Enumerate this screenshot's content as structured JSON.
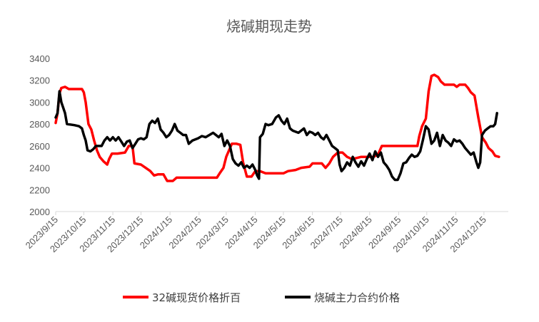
{
  "chart_data": {
    "type": "line",
    "title": "烧碱期现走势",
    "xlabel": "",
    "ylabel": "",
    "ylim": [
      2000,
      3400
    ],
    "yticks": [
      2000,
      2200,
      2400,
      2600,
      2800,
      3000,
      3200,
      3400
    ],
    "grid": false,
    "legend_position": "bottom",
    "x_tick_labels": [
      "2023/9/15",
      "2023/10/15",
      "2023/11/15",
      "2023/12/15",
      "2024/1/15",
      "2024/2/15",
      "2024/3/15",
      "2024/4/15",
      "2024/5/15",
      "2024/6/15",
      "2024/7/15",
      "2024/8/15",
      "2024/9/15",
      "2024/10/15",
      "2024/11/15",
      "2024/12/15"
    ],
    "series": [
      {
        "name": "32碱现货价格折百",
        "color": "#ff0000",
        "points": [
          [
            "2023-09-15",
            2810
          ],
          [
            "2023-09-17",
            2900
          ],
          [
            "2023-09-19",
            3080
          ],
          [
            "2023-09-21",
            3130
          ],
          [
            "2023-09-25",
            3140
          ],
          [
            "2023-09-29",
            3120
          ],
          [
            "2023-10-05",
            3120
          ],
          [
            "2023-10-10",
            3120
          ],
          [
            "2023-10-13",
            3120
          ],
          [
            "2023-10-15",
            3090
          ],
          [
            "2023-10-17",
            3000
          ],
          [
            "2023-10-20",
            2800
          ],
          [
            "2023-10-23",
            2750
          ],
          [
            "2023-10-26",
            2650
          ],
          [
            "2023-10-29",
            2560
          ],
          [
            "2023-11-01",
            2500
          ],
          [
            "2023-11-05",
            2460
          ],
          [
            "2023-11-09",
            2430
          ],
          [
            "2023-11-11",
            2480
          ],
          [
            "2023-11-14",
            2530
          ],
          [
            "2023-11-20",
            2530
          ],
          [
            "2023-11-28",
            2540
          ],
          [
            "2023-12-02",
            2600
          ],
          [
            "2023-12-06",
            2600
          ],
          [
            "2023-12-08",
            2440
          ],
          [
            "2023-12-15",
            2430
          ],
          [
            "2023-12-20",
            2400
          ],
          [
            "2023-12-25",
            2370
          ],
          [
            "2023-12-29",
            2330
          ],
          [
            "2024-01-02",
            2340
          ],
          [
            "2024-01-08",
            2340
          ],
          [
            "2024-01-12",
            2280
          ],
          [
            "2024-01-18",
            2280
          ],
          [
            "2024-01-22",
            2310
          ],
          [
            "2024-02-05",
            2310
          ],
          [
            "2024-02-20",
            2310
          ],
          [
            "2024-03-05",
            2310
          ],
          [
            "2024-03-08",
            2350
          ],
          [
            "2024-03-12",
            2400
          ],
          [
            "2024-03-15",
            2500
          ],
          [
            "2024-03-18",
            2560
          ],
          [
            "2024-03-21",
            2620
          ],
          [
            "2024-03-26",
            2620
          ],
          [
            "2024-03-30",
            2610
          ],
          [
            "2024-04-02",
            2450
          ],
          [
            "2024-04-06",
            2320
          ],
          [
            "2024-04-11",
            2320
          ],
          [
            "2024-04-15",
            2370
          ],
          [
            "2024-04-20",
            2370
          ],
          [
            "2024-04-26",
            2350
          ],
          [
            "2024-05-05",
            2350
          ],
          [
            "2024-05-15",
            2350
          ],
          [
            "2024-05-20",
            2370
          ],
          [
            "2024-05-28",
            2380
          ],
          [
            "2024-06-03",
            2400
          ],
          [
            "2024-06-12",
            2410
          ],
          [
            "2024-06-15",
            2440
          ],
          [
            "2024-06-25",
            2440
          ],
          [
            "2024-06-29",
            2400
          ],
          [
            "2024-07-03",
            2440
          ],
          [
            "2024-07-07",
            2500
          ],
          [
            "2024-07-12",
            2540
          ],
          [
            "2024-07-17",
            2540
          ],
          [
            "2024-07-22",
            2500
          ],
          [
            "2024-07-27",
            2480
          ],
          [
            "2024-08-01",
            2490
          ],
          [
            "2024-08-06",
            2500
          ],
          [
            "2024-08-12",
            2500
          ],
          [
            "2024-08-19",
            2500
          ],
          [
            "2024-08-24",
            2520
          ],
          [
            "2024-08-28",
            2600
          ],
          [
            "2024-09-05",
            2600
          ],
          [
            "2024-09-15",
            2600
          ],
          [
            "2024-09-25",
            2600
          ],
          [
            "2024-10-05",
            2600
          ],
          [
            "2024-10-07",
            2690
          ],
          [
            "2024-10-10",
            2780
          ],
          [
            "2024-10-14",
            2850
          ],
          [
            "2024-10-17",
            3100
          ],
          [
            "2024-10-20",
            3240
          ],
          [
            "2024-10-23",
            3250
          ],
          [
            "2024-10-27",
            3230
          ],
          [
            "2024-10-30",
            3190
          ],
          [
            "2024-11-03",
            3160
          ],
          [
            "2024-11-08",
            3160
          ],
          [
            "2024-11-13",
            3160
          ],
          [
            "2024-11-16",
            3140
          ],
          [
            "2024-11-19",
            3160
          ],
          [
            "2024-11-25",
            3160
          ],
          [
            "2024-11-28",
            3130
          ],
          [
            "2024-12-01",
            3090
          ],
          [
            "2024-12-05",
            3060
          ],
          [
            "2024-12-09",
            2860
          ],
          [
            "2024-12-13",
            2680
          ],
          [
            "2024-12-17",
            2630
          ],
          [
            "2024-12-20",
            2580
          ],
          [
            "2024-12-24",
            2550
          ],
          [
            "2024-12-27",
            2510
          ],
          [
            "2024-12-31",
            2500
          ]
        ]
      },
      {
        "name": "烧碱主力合约价格",
        "color": "#000000",
        "points": [
          [
            "2023-09-15",
            2860
          ],
          [
            "2023-09-17",
            2900
          ],
          [
            "2023-09-19",
            3100
          ],
          [
            "2023-09-21",
            3000
          ],
          [
            "2023-09-23",
            2950
          ],
          [
            "2023-09-25",
            2900
          ],
          [
            "2023-09-27",
            2800
          ],
          [
            "2023-10-05",
            2790
          ],
          [
            "2023-10-10",
            2780
          ],
          [
            "2023-10-13",
            2760
          ],
          [
            "2023-10-15",
            2700
          ],
          [
            "2023-10-17",
            2650
          ],
          [
            "2023-10-19",
            2560
          ],
          [
            "2023-10-22",
            2550
          ],
          [
            "2023-10-25",
            2570
          ],
          [
            "2023-10-28",
            2600
          ],
          [
            "2023-10-31",
            2600
          ],
          [
            "2023-11-03",
            2600
          ],
          [
            "2023-11-06",
            2650
          ],
          [
            "2023-11-09",
            2680
          ],
          [
            "2023-11-12",
            2650
          ],
          [
            "2023-11-15",
            2680
          ],
          [
            "2023-11-18",
            2650
          ],
          [
            "2023-11-21",
            2680
          ],
          [
            "2023-11-24",
            2640
          ],
          [
            "2023-11-27",
            2600
          ],
          [
            "2023-11-30",
            2640
          ],
          [
            "2023-12-03",
            2650
          ],
          [
            "2023-12-06",
            2580
          ],
          [
            "2023-12-09",
            2620
          ],
          [
            "2023-12-12",
            2660
          ],
          [
            "2023-12-15",
            2670
          ],
          [
            "2023-12-18",
            2660
          ],
          [
            "2023-12-21",
            2680
          ],
          [
            "2023-12-24",
            2800
          ],
          [
            "2023-12-27",
            2830
          ],
          [
            "2023-12-30",
            2810
          ],
          [
            "2024-01-02",
            2850
          ],
          [
            "2024-01-05",
            2750
          ],
          [
            "2024-01-08",
            2720
          ],
          [
            "2024-01-11",
            2680
          ],
          [
            "2024-01-14",
            2700
          ],
          [
            "2024-01-17",
            2740
          ],
          [
            "2024-01-20",
            2800
          ],
          [
            "2024-01-23",
            2740
          ],
          [
            "2024-01-26",
            2720
          ],
          [
            "2024-01-29",
            2700
          ],
          [
            "2024-02-01",
            2700
          ],
          [
            "2024-02-04",
            2620
          ],
          [
            "2024-02-08",
            2650
          ],
          [
            "2024-02-14",
            2670
          ],
          [
            "2024-02-18",
            2690
          ],
          [
            "2024-02-22",
            2680
          ],
          [
            "2024-02-26",
            2700
          ],
          [
            "2024-03-01",
            2720
          ],
          [
            "2024-03-04",
            2700
          ],
          [
            "2024-03-07",
            2680
          ],
          [
            "2024-03-10",
            2710
          ],
          [
            "2024-03-13",
            2600
          ],
          [
            "2024-03-16",
            2650
          ],
          [
            "2024-03-19",
            2600
          ],
          [
            "2024-03-22",
            2480
          ],
          [
            "2024-03-25",
            2440
          ],
          [
            "2024-03-28",
            2420
          ],
          [
            "2024-03-31",
            2450
          ],
          [
            "2024-04-03",
            2400
          ],
          [
            "2024-04-06",
            2420
          ],
          [
            "2024-04-09",
            2400
          ],
          [
            "2024-04-12",
            2430
          ],
          [
            "2024-04-15",
            2380
          ],
          [
            "2024-04-17",
            2330
          ],
          [
            "2024-04-19",
            2300
          ],
          [
            "2024-04-20",
            2680
          ],
          [
            "2024-04-23",
            2710
          ],
          [
            "2024-04-26",
            2800
          ],
          [
            "2024-04-29",
            2790
          ],
          [
            "2024-05-03",
            2800
          ],
          [
            "2024-05-07",
            2860
          ],
          [
            "2024-05-10",
            2880
          ],
          [
            "2024-05-13",
            2830
          ],
          [
            "2024-05-16",
            2800
          ],
          [
            "2024-05-19",
            2850
          ],
          [
            "2024-05-22",
            2760
          ],
          [
            "2024-05-25",
            2740
          ],
          [
            "2024-05-28",
            2730
          ],
          [
            "2024-05-31",
            2720
          ],
          [
            "2024-06-03",
            2740
          ],
          [
            "2024-06-06",
            2760
          ],
          [
            "2024-06-09",
            2700
          ],
          [
            "2024-06-12",
            2730
          ],
          [
            "2024-06-15",
            2720
          ],
          [
            "2024-06-18",
            2700
          ],
          [
            "2024-06-21",
            2720
          ],
          [
            "2024-06-24",
            2680
          ],
          [
            "2024-06-27",
            2660
          ],
          [
            "2024-06-30",
            2700
          ],
          [
            "2024-07-03",
            2650
          ],
          [
            "2024-07-06",
            2600
          ],
          [
            "2024-07-09",
            2580
          ],
          [
            "2024-07-12",
            2560
          ],
          [
            "2024-07-14",
            2430
          ],
          [
            "2024-07-16",
            2370
          ],
          [
            "2024-07-19",
            2400
          ],
          [
            "2024-07-22",
            2450
          ],
          [
            "2024-07-25",
            2420
          ],
          [
            "2024-07-28",
            2500
          ],
          [
            "2024-07-31",
            2450
          ],
          [
            "2024-08-03",
            2410
          ],
          [
            "2024-08-06",
            2460
          ],
          [
            "2024-08-09",
            2420
          ],
          [
            "2024-08-12",
            2480
          ],
          [
            "2024-08-15",
            2530
          ],
          [
            "2024-08-18",
            2470
          ],
          [
            "2024-08-21",
            2550
          ],
          [
            "2024-08-24",
            2500
          ],
          [
            "2024-08-27",
            2540
          ],
          [
            "2024-08-30",
            2450
          ],
          [
            "2024-09-02",
            2420
          ],
          [
            "2024-09-05",
            2380
          ],
          [
            "2024-09-08",
            2320
          ],
          [
            "2024-09-11",
            2290
          ],
          [
            "2024-09-14",
            2290
          ],
          [
            "2024-09-17",
            2350
          ],
          [
            "2024-09-20",
            2440
          ],
          [
            "2024-09-23",
            2450
          ],
          [
            "2024-09-26",
            2490
          ],
          [
            "2024-09-29",
            2520
          ],
          [
            "2024-10-02",
            2500
          ],
          [
            "2024-10-05",
            2510
          ],
          [
            "2024-10-08",
            2550
          ],
          [
            "2024-10-11",
            2660
          ],
          [
            "2024-10-14",
            2780
          ],
          [
            "2024-10-17",
            2750
          ],
          [
            "2024-10-20",
            2620
          ],
          [
            "2024-10-23",
            2650
          ],
          [
            "2024-10-26",
            2720
          ],
          [
            "2024-10-29",
            2600
          ],
          [
            "2024-11-01",
            2700
          ],
          [
            "2024-11-04",
            2650
          ],
          [
            "2024-11-07",
            2630
          ],
          [
            "2024-11-10",
            2600
          ],
          [
            "2024-11-13",
            2660
          ],
          [
            "2024-11-16",
            2640
          ],
          [
            "2024-11-19",
            2650
          ],
          [
            "2024-11-22",
            2620
          ],
          [
            "2024-11-25",
            2580
          ],
          [
            "2024-11-28",
            2550
          ],
          [
            "2024-12-01",
            2520
          ],
          [
            "2024-12-04",
            2540
          ],
          [
            "2024-12-07",
            2450
          ],
          [
            "2024-12-09",
            2400
          ],
          [
            "2024-12-11",
            2450
          ],
          [
            "2024-12-13",
            2700
          ],
          [
            "2024-12-16",
            2740
          ],
          [
            "2024-12-19",
            2760
          ],
          [
            "2024-12-22",
            2780
          ],
          [
            "2024-12-25",
            2780
          ],
          [
            "2024-12-27",
            2800
          ],
          [
            "2024-12-29",
            2900
          ]
        ]
      }
    ]
  }
}
